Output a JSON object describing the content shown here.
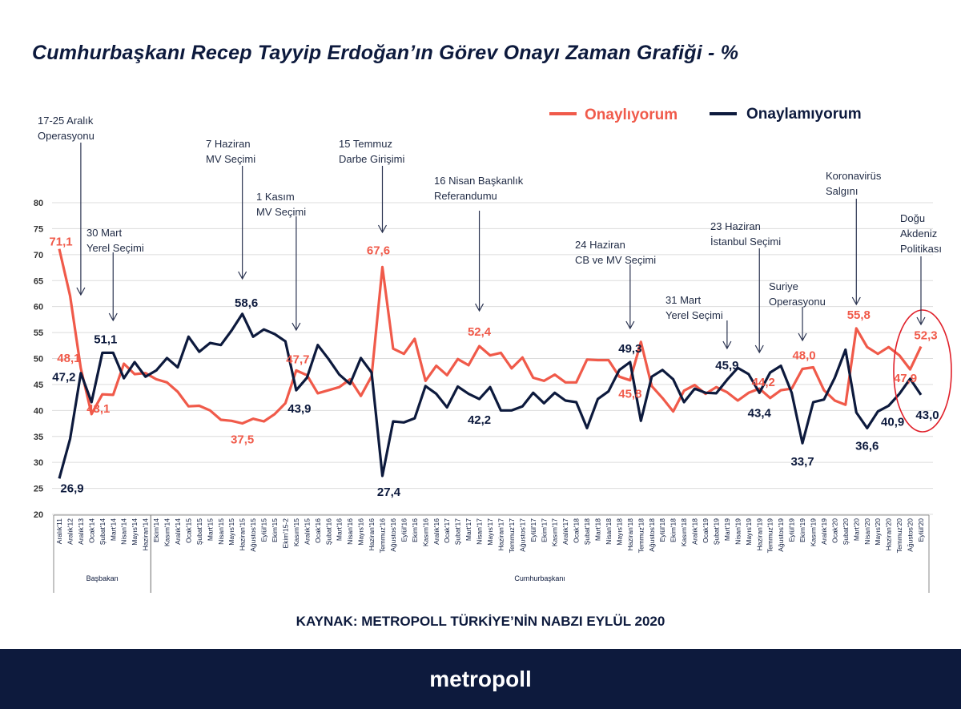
{
  "title": "Cumhurbaşkanı Recep Tayyip Erdoğan’ın Görev Onayı Zaman Grafiği - %",
  "source": "KAYNAK: METROPOLL TÜRKİYE’NİN NABZI EYLÜL 2020",
  "footer_brand": "metropoll",
  "colors": {
    "approve": "#f05a4a",
    "disapprove": "#0d1a3d",
    "highlight_ellipse": "#e0202a",
    "footer": "#0d1a3d"
  },
  "chart_data": {
    "type": "line",
    "title": "Cumhurbaşkanı Recep Tayyip Erdoğan’ın Görev Onayı Zaman Grafiği - %",
    "xlabel": "",
    "ylabel": "",
    "ylim": [
      20,
      80
    ],
    "yticks": [
      20,
      25,
      30,
      35,
      40,
      45,
      50,
      55,
      60,
      65,
      70,
      75,
      80
    ],
    "grid": true,
    "legend_position": "top-right",
    "categories": [
      "Aralık'11",
      "Aralık'12",
      "Aralık'13",
      "Ocak'14",
      "Şubat'14",
      "Mart'14",
      "Nisan'14",
      "Mayıs'14",
      "Haziran'14",
      "Ekim'14",
      "Kasım'14",
      "Aralık'14",
      "Ocak'15",
      "Şubat'15",
      "Mart'15",
      "Nisan'15",
      "Mayıs'15",
      "Haziran'15",
      "Ağustos'15",
      "Eylül'15",
      "Ekim'15",
      "Ekim'15-2",
      "Kasım'15",
      "Aralık'15",
      "Ocak'16",
      "Şubat'16",
      "Mart'16",
      "Nisan'16",
      "Mayıs'16",
      "Haziran'16",
      "Temmuz'16",
      "Ağustos'16",
      "Eylül'16",
      "Ekim'16",
      "Kasım'16",
      "Aralık'16",
      "Ocak'17",
      "Şubat'17",
      "Mart'17",
      "Nisan'17",
      "Mayıs'17",
      "Haziran'17",
      "Temmuz'17",
      "Ağustos'17",
      "Eylül'17",
      "Ekim'17",
      "Kasım'17",
      "Aralık'17",
      "Ocak'18",
      "Şubat'18",
      "Mart'18",
      "Nisan'18",
      "Mayıs'18",
      "Haziran'18",
      "Temmuz'18",
      "Ağustos'18",
      "Eylül'18",
      "Ekim'18",
      "Kasım'18",
      "Aralık'18",
      "Ocak'19",
      "Şubat'19",
      "Mart'19",
      "Nisan'19",
      "Mayıs'19",
      "Haziran'19",
      "Temmuz'19",
      "Ağustos'19",
      "Eylül'19",
      "Ekim'19",
      "Kasım'19",
      "Aralık'19",
      "Ocak'20",
      "Şubat'20",
      "Mart'20",
      "Nisan'20",
      "Mayıs'20",
      "Haziran'20",
      "Temmuz'20",
      "Ağustos'20",
      "Eylül'20"
    ],
    "category_groups": [
      {
        "label": "Başbakan",
        "from": "Aralık'11",
        "to": "Haziran'14"
      },
      {
        "label": "Cumhurbaşkanı",
        "from": "Ekim'14",
        "to": "Eylül'20"
      }
    ],
    "series": [
      {
        "name": "Onaylıyorum",
        "color": "#f05a4a",
        "values": [
          71.1,
          62.1,
          48.1,
          39.3,
          43.1,
          43.0,
          49.0,
          47.0,
          47.2,
          46.0,
          45.4,
          43.6,
          40.8,
          40.9,
          40.0,
          38.2,
          38.0,
          37.5,
          38.4,
          37.9,
          39.3,
          41.4,
          47.7,
          46.8,
          43.3,
          43.9,
          44.5,
          46.0,
          42.8,
          46.6,
          67.6,
          51.9,
          50.9,
          53.8,
          45.7,
          48.6,
          46.8,
          49.9,
          48.7,
          52.4,
          50.6,
          51.1,
          48.1,
          50.2,
          46.3,
          45.7,
          46.9,
          45.4,
          45.4,
          49.8,
          49.7,
          49.7,
          46.5,
          45.8,
          53.2,
          44.7,
          42.4,
          39.8,
          43.8,
          44.9,
          43.2,
          44.5,
          43.5,
          41.9,
          43.4,
          44.2,
          42.4,
          43.9,
          44.2,
          48.0,
          48.3,
          43.9,
          41.9,
          41.1,
          55.8,
          52.2,
          50.9,
          52.2,
          50.6,
          47.9,
          52.3
        ],
        "data_labels": [
          {
            "at": 0,
            "text": "71,1"
          },
          {
            "at": 2,
            "text": "48,1"
          },
          {
            "at": 4,
            "text": "43,1"
          },
          {
            "at": 17,
            "text": "37,5"
          },
          {
            "at": 22,
            "text": "47,7"
          },
          {
            "at": 30,
            "text": "67,6"
          },
          {
            "at": 39,
            "text": "52,4"
          },
          {
            "at": 53,
            "text": "45,8"
          },
          {
            "at": 65,
            "text": "44,2"
          },
          {
            "at": 69,
            "text": "48,0"
          },
          {
            "at": 74,
            "text": "55,8"
          },
          {
            "at": 79,
            "text": "47,9"
          },
          {
            "at": 80,
            "text": "52,3"
          }
        ]
      },
      {
        "name": "Onaylamıyorum",
        "color": "#0d1a3d",
        "values": [
          26.9,
          34.5,
          47.2,
          41.6,
          51.1,
          51.1,
          46.2,
          49.3,
          46.5,
          47.7,
          50.1,
          48.3,
          54.2,
          51.3,
          53.0,
          52.6,
          55.4,
          58.6,
          54.2,
          55.6,
          54.7,
          53.3,
          43.9,
          46.3,
          52.6,
          49.9,
          46.9,
          45.1,
          50.1,
          47.3,
          27.4,
          37.9,
          37.7,
          38.5,
          44.7,
          43.2,
          40.6,
          44.6,
          43.2,
          42.2,
          44.5,
          40.0,
          40.0,
          40.8,
          43.4,
          41.4,
          43.4,
          41.9,
          41.6,
          36.6,
          42.2,
          43.7,
          47.8,
          49.3,
          38.0,
          46.5,
          47.8,
          46.0,
          41.6,
          44.2,
          43.4,
          43.3,
          45.9,
          48.2,
          47.0,
          43.4,
          47.3,
          48.6,
          43.4,
          33.7,
          41.6,
          42.1,
          46.3,
          51.7,
          39.6,
          36.6,
          39.8,
          40.9,
          43.2,
          46.1,
          43.0
        ],
        "data_labels": [
          {
            "at": 0,
            "text": "26,9"
          },
          {
            "at": 2,
            "text": "47,2"
          },
          {
            "at": 4,
            "text": "51,1"
          },
          {
            "at": 17,
            "text": "58,6"
          },
          {
            "at": 22,
            "text": "43,9"
          },
          {
            "at": 30,
            "text": "27,4"
          },
          {
            "at": 39,
            "text": "42,2"
          },
          {
            "at": 53,
            "text": "49,3"
          },
          {
            "at": 62,
            "text": "45,9"
          },
          {
            "at": 65,
            "text": "43,4"
          },
          {
            "at": 69,
            "text": "33,7"
          },
          {
            "at": 75,
            "text": "36,6"
          },
          {
            "at": 77,
            "text": "40,9"
          },
          {
            "at": 80,
            "text": "43,0"
          }
        ]
      }
    ],
    "annotations": [
      {
        "lines": [
          "17-25 Aralık",
          "Operasyonu"
        ],
        "at": "Aralık'13"
      },
      {
        "lines": [
          "30 Mart",
          "Yerel Seçimi"
        ],
        "at": "Mart'14"
      },
      {
        "lines": [
          "7 Haziran",
          "MV Seçimi"
        ],
        "at": "Haziran'15"
      },
      {
        "lines": [
          "1 Kasım",
          "MV Seçimi"
        ],
        "at": "Kasım'15"
      },
      {
        "lines": [
          "15 Temmuz",
          "Darbe Girişimi"
        ],
        "at": "Temmuz'16"
      },
      {
        "lines": [
          "16 Nisan Başkanlık",
          "Referandumu"
        ],
        "at": "Nisan'17"
      },
      {
        "lines": [
          "24 Haziran",
          "CB  ve MV Seçimi"
        ],
        "at": "Haziran'18"
      },
      {
        "lines": [
          "31 Mart",
          "Yerel Seçimi"
        ],
        "at": "Mart'19"
      },
      {
        "lines": [
          "23 Haziran",
          "İstanbul Seçimi"
        ],
        "at": "Haziran'19"
      },
      {
        "lines": [
          "Suriye",
          "Operasyonu"
        ],
        "at": "Ekim'19"
      },
      {
        "lines": [
          "Koronavirüs",
          "Salgını"
        ],
        "at": "Mart'20"
      },
      {
        "lines": [
          "Doğu",
          "Akdeniz",
          "Politikası"
        ],
        "at": "Eylül'20"
      }
    ],
    "highlighted_point": "Eylül'20"
  }
}
